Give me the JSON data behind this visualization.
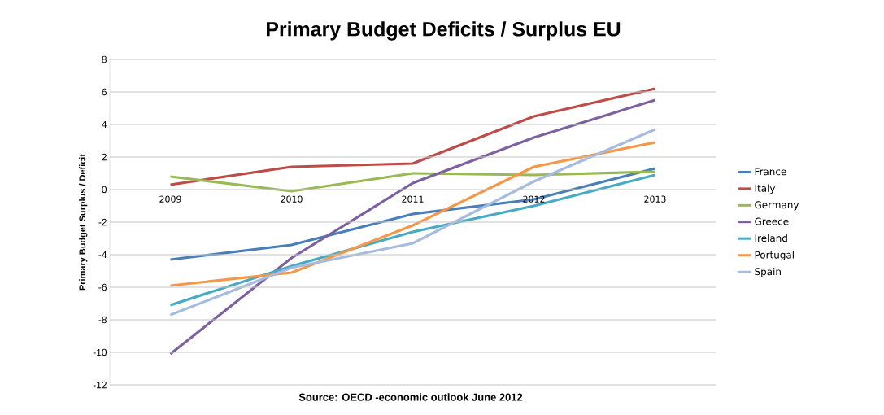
{
  "chart_data": {
    "type": "line",
    "title": "Primary Budget Deficits / Surplus EU",
    "ylabel": "Primary Budget Surplus / Deficit",
    "categories": [
      "2009",
      "2010",
      "2011",
      "2012",
      "2013"
    ],
    "series": [
      {
        "name": "France",
        "color": "#4a7ebb",
        "values": [
          -4.3,
          -3.4,
          -1.5,
          -0.6,
          1.3
        ]
      },
      {
        "name": "Italy",
        "color": "#be4b48",
        "values": [
          0.3,
          1.4,
          1.6,
          4.5,
          6.2
        ]
      },
      {
        "name": "Germany",
        "color": "#98b954",
        "values": [
          0.8,
          -0.1,
          1.0,
          0.9,
          1.1
        ]
      },
      {
        "name": "Greece",
        "color": "#7d60a0",
        "values": [
          -10.1,
          -4.2,
          0.4,
          3.2,
          5.5
        ]
      },
      {
        "name": "Ireland",
        "color": "#46aac5",
        "values": [
          -7.1,
          -4.7,
          -2.6,
          -1.0,
          0.9
        ]
      },
      {
        "name": "Portugal",
        "color": "#f79646",
        "values": [
          -5.9,
          -5.1,
          -2.2,
          1.4,
          2.9
        ]
      },
      {
        "name": "Spain",
        "color": "#a5bbe0",
        "values": [
          -7.7,
          -4.8,
          -3.3,
          0.5,
          3.7
        ]
      }
    ],
    "ylim": [
      -12,
      8
    ],
    "yticks": [
      -12,
      -10,
      -8,
      -6,
      -4,
      -2,
      0,
      2,
      4,
      6,
      8
    ],
    "grid": "y",
    "legend": "right",
    "marker": "none",
    "line_style": "solid",
    "annotations": [
      "Source: OECD -economic outlook June 2012"
    ]
  }
}
